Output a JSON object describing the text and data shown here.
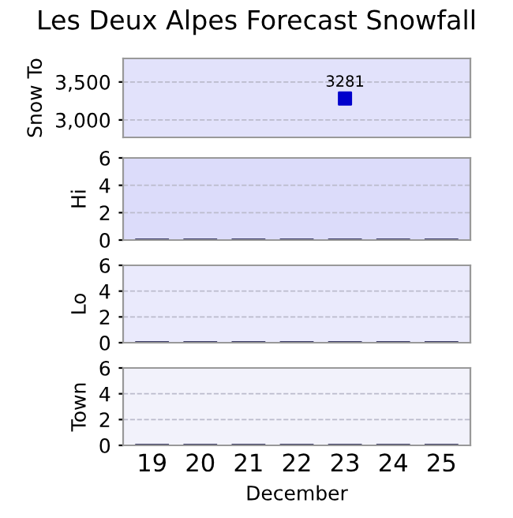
{
  "chart_data": [
    {
      "type": "scatter",
      "title": "Les Deux Alpes Forecast Snowfall",
      "ylabel": "Snow To",
      "categories": [
        "19",
        "20",
        "21",
        "22",
        "23",
        "24",
        "25"
      ],
      "values": [
        null,
        null,
        null,
        null,
        3281,
        null,
        null
      ],
      "color": "#0000cc",
      "marker": "square",
      "data_labels": true,
      "ylim": [
        2770,
        3810
      ],
      "yticks": [
        {
          "value": 3000,
          "label": "3,000"
        },
        {
          "value": 3500,
          "label": "3,500"
        }
      ],
      "grid": "y",
      "tick_labels": "y"
    },
    {
      "type": "bar",
      "ylabel": "Hi",
      "categories": [
        "19",
        "20",
        "21",
        "22",
        "23",
        "24",
        "25"
      ],
      "values": [
        0,
        0,
        0,
        0,
        0,
        0,
        0
      ],
      "color": "#ffffff",
      "ylim": [
        0,
        6
      ],
      "yticks": [
        0,
        2,
        4,
        6
      ],
      "grid": "y",
      "tick_labels": "y"
    },
    {
      "type": "bar",
      "ylabel": "Lo",
      "categories": [
        "19",
        "20",
        "21",
        "22",
        "23",
        "24",
        "25"
      ],
      "values": [
        0,
        0,
        0,
        0,
        0,
        0,
        0
      ],
      "color": "#ffffff",
      "ylim": [
        0,
        6
      ],
      "yticks": [
        0,
        2,
        4,
        6
      ],
      "grid": "y",
      "tick_labels": "y"
    },
    {
      "type": "bar",
      "ylabel": "Town",
      "xlabel": "December",
      "categories": [
        "19",
        "20",
        "21",
        "22",
        "23",
        "24",
        "25"
      ],
      "values": [
        0,
        0,
        0,
        0,
        0,
        0,
        0
      ],
      "color": "#ffffff",
      "ylim": [
        0,
        6
      ],
      "yticks": [
        0,
        2,
        4,
        6
      ],
      "grid": "y"
    }
  ]
}
